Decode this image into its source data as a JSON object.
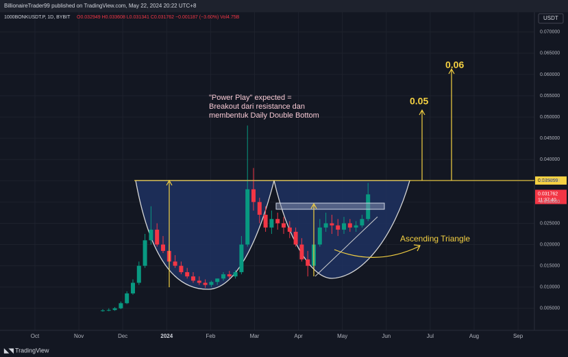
{
  "header": "BillionaireTrader99 published on TradingView.com, May 22, 2024 20:22 UTC+8",
  "footer": "TradingView",
  "chart_data": {
    "type": "candlestick",
    "symbol": "1000BONKUSDT.P, 1D, BYBIT",
    "ohlc_text": "O0.032949 H0.033608 L0.031341 C0.031762 −0.001187 (−3.60%) Vol4.75B",
    "currency": "USDT",
    "annotation": [
      "\"Power Play\" expected =",
      "Breakout dari resistance dan",
      "membentuk Daily Double Bottom"
    ],
    "pattern_label": "Ascending Triangle",
    "targets": [
      0.05,
      0.06
    ],
    "resistance_level": 0.035059,
    "last_price": 0.031762,
    "countdown": "11:37:40",
    "up_color": "#089981",
    "down_color": "#f23645",
    "x_labels": [
      "Oct",
      "Nov",
      "Dec",
      "2024",
      "Feb",
      "Mar",
      "Apr",
      "May",
      "Jun",
      "Jul",
      "Aug",
      "Sep"
    ],
    "open": [
      0.0044,
      0.0045,
      0.0046,
      0.005,
      0.0062,
      0.0085,
      0.011,
      0.015,
      0.021,
      0.0235,
      0.02,
      0.0185,
      0.016,
      0.015,
      0.0135,
      0.0125,
      0.0115,
      0.011,
      0.0105,
      0.0112,
      0.012,
      0.013,
      0.0125,
      0.0135,
      0.02,
      0.033,
      0.03,
      0.027,
      0.024,
      0.026,
      0.025,
      0.024,
      0.023,
      0.02,
      0.0165,
      0.015,
      0.02,
      0.024,
      0.025,
      0.0245,
      0.0235,
      0.025,
      0.024,
      0.0245,
      0.026
    ],
    "high": [
      0.0048,
      0.005,
      0.0053,
      0.0066,
      0.009,
      0.0118,
      0.016,
      0.0225,
      0.029,
      0.025,
      0.022,
      0.02,
      0.0175,
      0.016,
      0.0145,
      0.0135,
      0.0125,
      0.0118,
      0.0115,
      0.012,
      0.0135,
      0.0138,
      0.014,
      0.022,
      0.048,
      0.038,
      0.031,
      0.029,
      0.028,
      0.0275,
      0.0265,
      0.0255,
      0.024,
      0.0215,
      0.0185,
      0.021,
      0.026,
      0.0275,
      0.027,
      0.026,
      0.0265,
      0.026,
      0.0255,
      0.027,
      0.0345
    ],
    "low": [
      0.0042,
      0.0043,
      0.0044,
      0.0048,
      0.006,
      0.0082,
      0.0105,
      0.0145,
      0.02,
      0.0195,
      0.018,
      0.0155,
      0.0145,
      0.013,
      0.012,
      0.011,
      0.0105,
      0.0098,
      0.01,
      0.0105,
      0.0115,
      0.012,
      0.012,
      0.013,
      0.0195,
      0.028,
      0.025,
      0.023,
      0.0225,
      0.0235,
      0.0225,
      0.0215,
      0.0195,
      0.016,
      0.0125,
      0.0145,
      0.0195,
      0.023,
      0.0225,
      0.022,
      0.0225,
      0.023,
      0.023,
      0.024,
      0.0255
    ],
    "close": [
      0.0045,
      0.0046,
      0.005,
      0.0062,
      0.0085,
      0.011,
      0.015,
      0.021,
      0.0235,
      0.02,
      0.0185,
      0.016,
      0.015,
      0.0135,
      0.0125,
      0.0115,
      0.011,
      0.0105,
      0.0112,
      0.012,
      0.013,
      0.0125,
      0.0135,
      0.02,
      0.033,
      0.03,
      0.027,
      0.024,
      0.026,
      0.025,
      0.024,
      0.023,
      0.02,
      0.0165,
      0.015,
      0.02,
      0.024,
      0.025,
      0.0245,
      0.0235,
      0.025,
      0.024,
      0.0245,
      0.026,
      0.0318
    ],
    "ylim": [
      0.0003,
      0.0727
    ],
    "yticks": [
      {
        "value": 0.005,
        "label": "0.005000"
      },
      {
        "value": 0.01,
        "label": "0.010000"
      },
      {
        "value": 0.015,
        "label": "0.015000"
      },
      {
        "value": 0.02,
        "label": "0.020000"
      },
      {
        "value": 0.025,
        "label": "0.025000"
      },
      {
        "value": 0.03,
        "label": "0.030000"
      },
      {
        "value": 0.035,
        "label": "0.035000"
      },
      {
        "value": 0.04,
        "label": "0.040000"
      },
      {
        "value": 0.045,
        "label": "0.045000"
      },
      {
        "value": 0.05,
        "label": "0.050000"
      },
      {
        "value": 0.055,
        "label": "0.055000"
      },
      {
        "value": 0.06,
        "label": "0.060000"
      },
      {
        "value": 0.065,
        "label": "0.065000"
      },
      {
        "value": 0.07,
        "label": "0.070000"
      }
    ],
    "grid": true
  }
}
